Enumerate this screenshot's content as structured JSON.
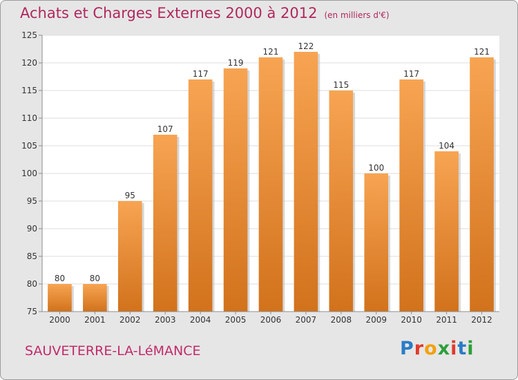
{
  "header": {
    "title": "Achats et Charges Externes 2000 à 2012",
    "unit": "(en milliers d'€)"
  },
  "footer": {
    "town": "SAUVETERRE-LA-LéMANCE",
    "logo_text": "Proxiti",
    "logo_colors": [
      "#2b7bc7",
      "#e03a2a",
      "#f2a10b",
      "#2b9f3a",
      "#e03a2a",
      "#2b7bc7",
      "#2b9f3a"
    ]
  },
  "colors": {
    "bar_top": "#f7a452",
    "bar_bottom": "#d2721c",
    "plot_bg": "#ffffff",
    "frame_bg": "#e6e6e6",
    "grid": "#dddddd",
    "axis": "#8c8c8c",
    "text": "#333333"
  },
  "chart_data": {
    "type": "bar",
    "title": "Achats et Charges Externes 2000 à 2012",
    "subtitle": "(en milliers d'€)",
    "categories": [
      "2000",
      "2001",
      "2002",
      "2003",
      "2004",
      "2005",
      "2006",
      "2007",
      "2008",
      "2009",
      "2010",
      "2011",
      "2012"
    ],
    "values": [
      80,
      80,
      95,
      107,
      117,
      119,
      121,
      122,
      115,
      100,
      117,
      104,
      121
    ],
    "ylim": [
      75,
      125
    ],
    "yticks": [
      75,
      80,
      85,
      90,
      95,
      100,
      105,
      110,
      115,
      120,
      125
    ],
    "grid": true,
    "xlabel": "",
    "ylabel": ""
  }
}
